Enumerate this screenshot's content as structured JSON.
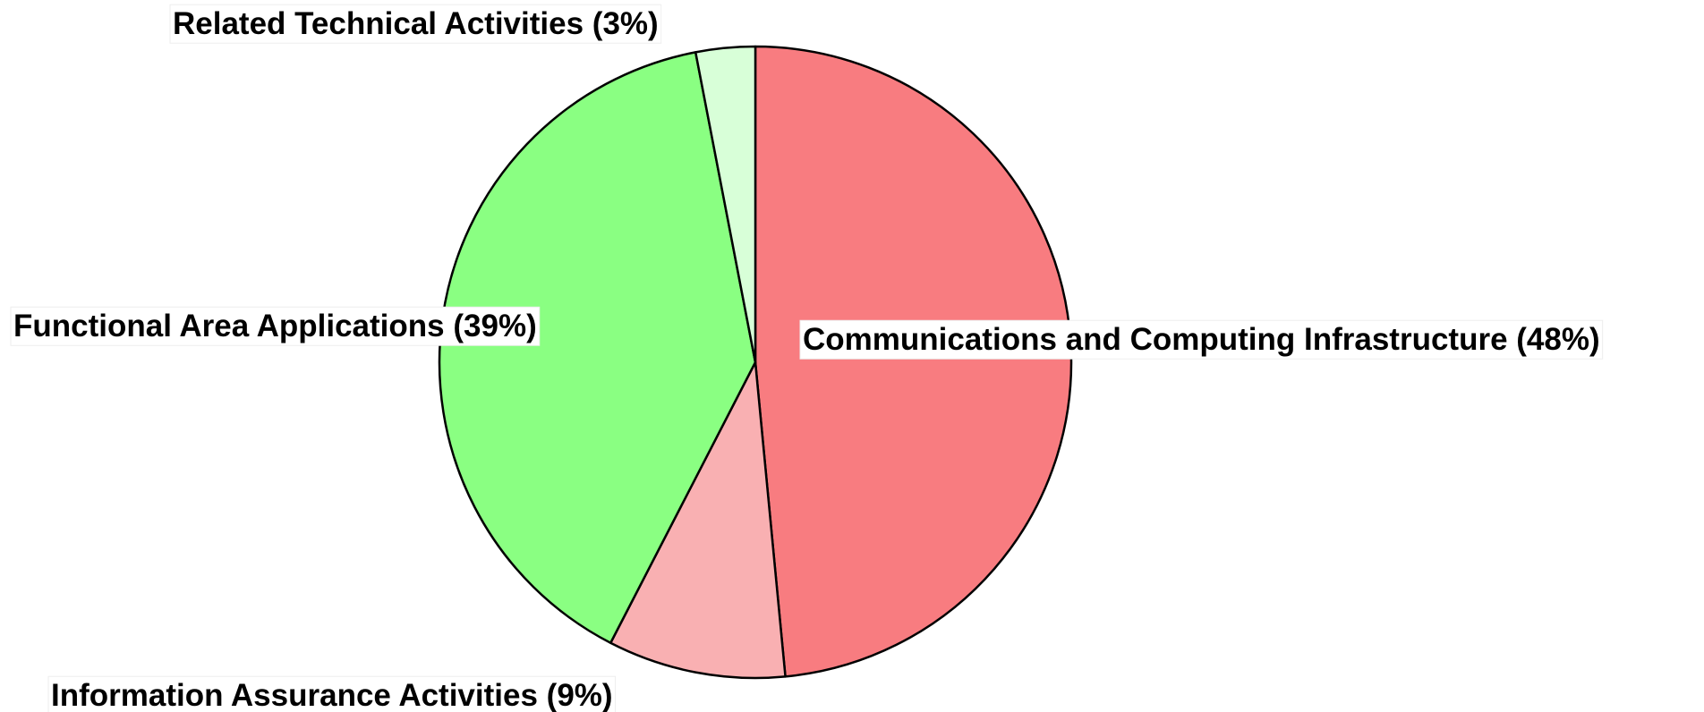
{
  "chart_data": {
    "type": "pie",
    "categories": [
      "Communications and Computing Infrastructure",
      "Information Assurance Activities",
      "Functional Area Applications",
      "Related Technical Activities"
    ],
    "values": [
      48,
      9,
      39,
      3
    ],
    "value_labels": [
      "(48%)",
      "(9%)",
      "(39%)",
      "(3%)"
    ],
    "colors": [
      "#f87c80",
      "#f9b0b2",
      "#8aff82",
      "#d8ffd8"
    ]
  }
}
